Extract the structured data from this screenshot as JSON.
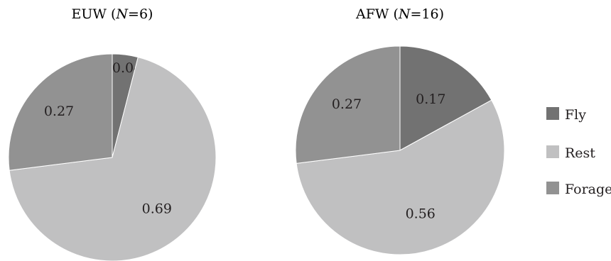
{
  "chart_data": [
    {
      "type": "pie",
      "title": {
        "prefix": "EUW (",
        "n_symbol": "N",
        "n_text": "=6)"
      },
      "slices": [
        {
          "category": "Fly",
          "value": 0.04,
          "label": "0.04"
        },
        {
          "category": "Rest",
          "value": 0.69,
          "label": "0.69"
        },
        {
          "category": "Forage",
          "value": 0.27,
          "label": "0.27"
        }
      ]
    },
    {
      "type": "pie",
      "title": {
        "prefix": "AFW (",
        "n_symbol": "N",
        "n_text": "=16)"
      },
      "slices": [
        {
          "category": "Fly",
          "value": 0.17,
          "label": "0.17"
        },
        {
          "category": "Rest",
          "value": 0.56,
          "label": "0.56"
        },
        {
          "category": "Forage",
          "value": 0.27,
          "label": "0.27"
        }
      ]
    }
  ],
  "legend": {
    "placement": "right",
    "items": [
      {
        "label": "Fly",
        "color": "#727272"
      },
      {
        "label": "Rest",
        "color": "#c0c0c1"
      },
      {
        "label": "Forage",
        "color": "#929292"
      }
    ]
  }
}
